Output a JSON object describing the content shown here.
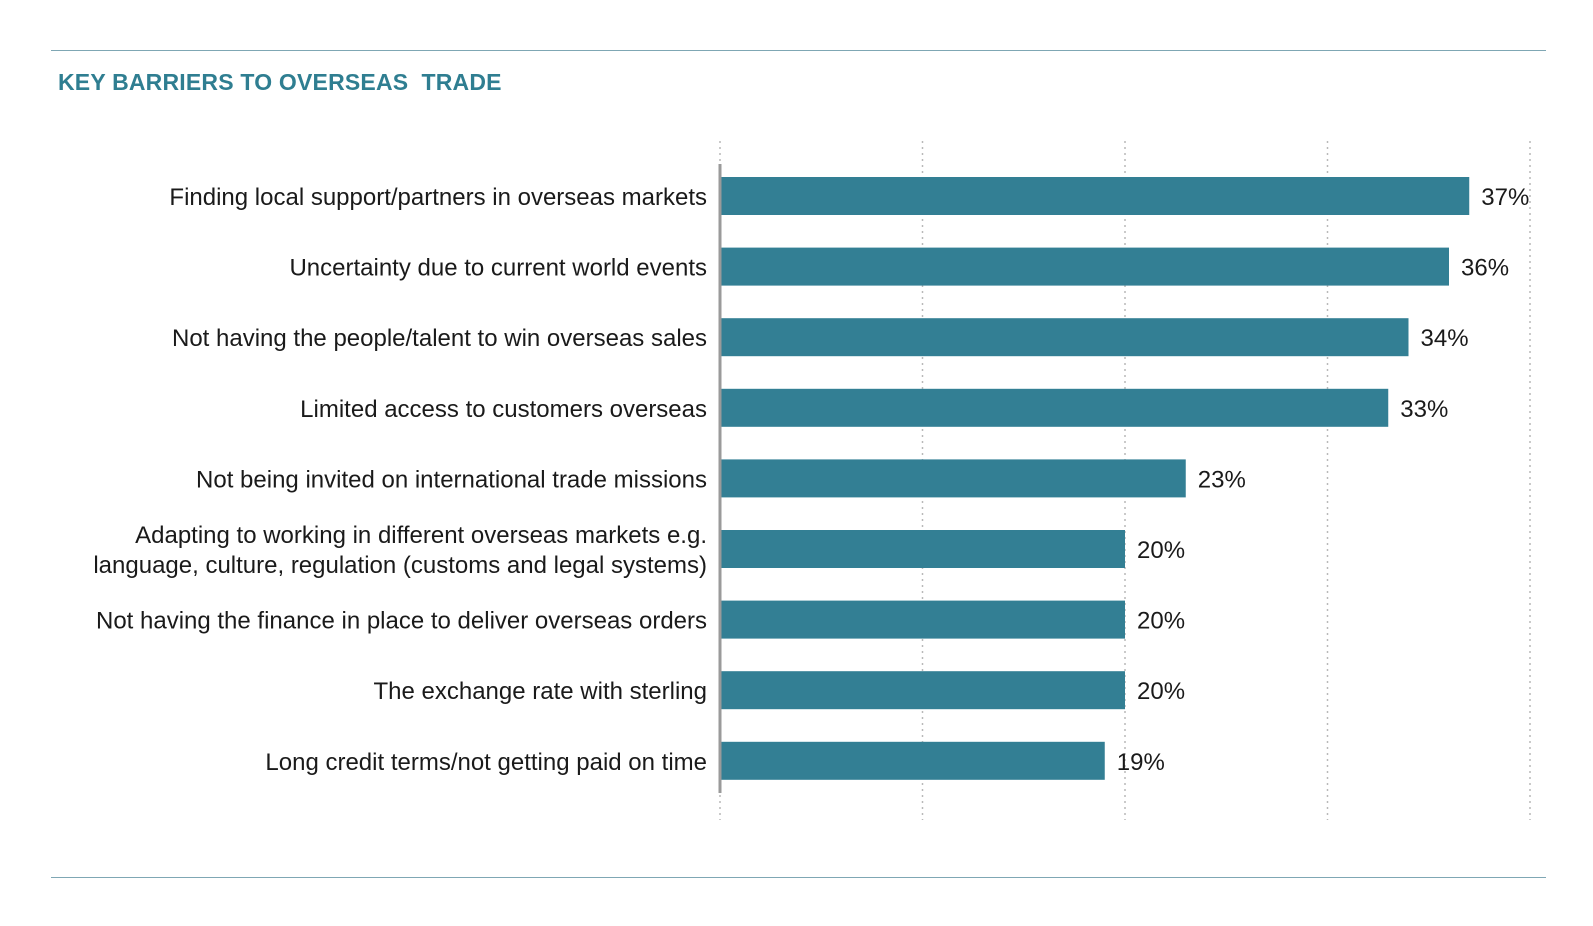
{
  "title": "KEY BARRIERS TO OVERSEAS  TRADE",
  "colors": {
    "accent": "#337f94",
    "rule": "#7fa7b4",
    "title": "#2f7e91",
    "text": "#1a1a1a",
    "grid": "#b9b9b9",
    "axis": "#9a9a9a"
  },
  "chart_data": {
    "type": "bar",
    "orientation": "horizontal",
    "title": "KEY BARRIERS TO OVERSEAS  TRADE",
    "categories": [
      [
        "Finding local support/partners in overseas markets"
      ],
      [
        "Uncertainty due to current world events"
      ],
      [
        "Not having the people/talent to win overseas sales"
      ],
      [
        "Limited access to customers overseas"
      ],
      [
        "Not being invited on international trade missions"
      ],
      [
        "Adapting to working in different overseas markets e.g.",
        "language, culture, regulation (customs and legal systems)"
      ],
      [
        "Not having the finance in place to deliver overseas orders"
      ],
      [
        "The exchange rate with sterling"
      ],
      [
        "Long credit terms/not getting paid on time"
      ]
    ],
    "values": [
      37,
      36,
      34,
      33,
      23,
      20,
      20,
      20,
      19
    ],
    "value_labels": [
      "37%",
      "36%",
      "34%",
      "33%",
      "23%",
      "20%",
      "20%",
      "20%",
      "19%"
    ],
    "xlim": [
      0,
      40
    ],
    "gridlines": [
      0,
      10,
      20,
      30,
      40
    ],
    "grid": true,
    "grid_style": "dotted",
    "xlabel": "",
    "ylabel": ""
  }
}
